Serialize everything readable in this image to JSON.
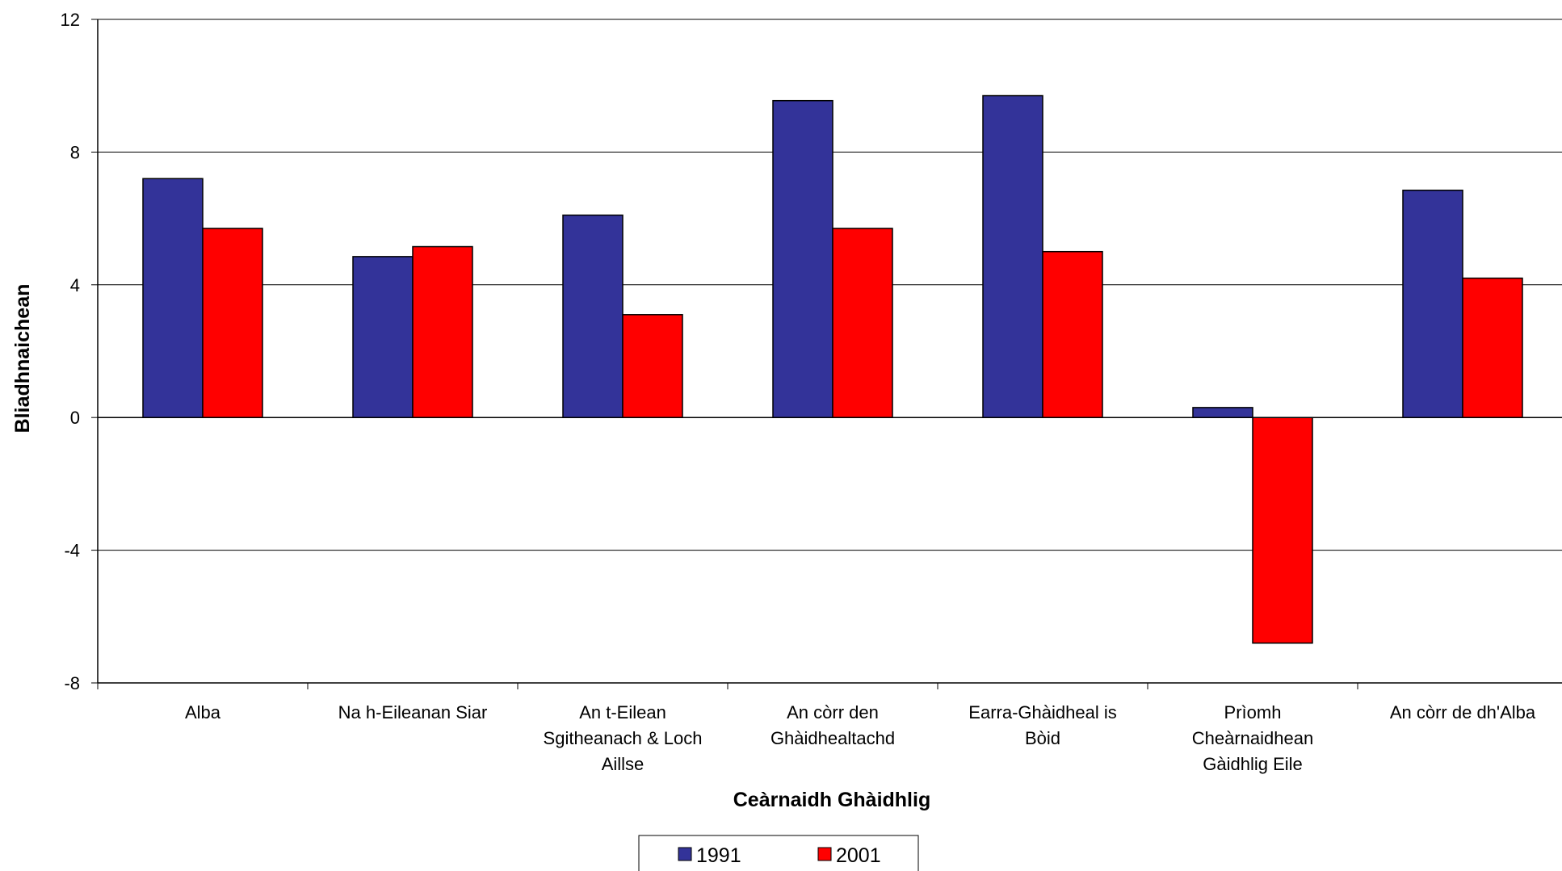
{
  "chart_data": {
    "type": "bar",
    "title": "",
    "xlabel": "Ceàrnaidh Ghàidhlig",
    "ylabel": "Bliadhnaichean",
    "ylim": [
      -8,
      12
    ],
    "yticks": [
      "-8",
      "-4",
      "0",
      "4",
      "8",
      "12"
    ],
    "grid": true,
    "legend_position": "bottom-center",
    "categories": [
      [
        "Alba"
      ],
      [
        "Na h-Eileanan Siar"
      ],
      [
        "An t-Eilean",
        "Sgitheanach & Loch",
        "Aillse"
      ],
      [
        "An còrr den",
        "Ghàidhealtachd"
      ],
      [
        "Earra-Ghàidheal is",
        "Bòid"
      ],
      [
        "Prìomh",
        "Cheàrnaidhean",
        "Gàidhlig Eile"
      ],
      [
        "An còrr de dh'Alba"
      ]
    ],
    "series": [
      {
        "name": "1991",
        "color": "#333399",
        "values": [
          7.2,
          4.85,
          6.1,
          9.55,
          9.7,
          0.3,
          6.85
        ]
      },
      {
        "name": "2001",
        "color": "#ff0000",
        "values": [
          5.7,
          5.15,
          3.1,
          5.7,
          5.0,
          -6.8,
          4.2
        ]
      }
    ]
  }
}
